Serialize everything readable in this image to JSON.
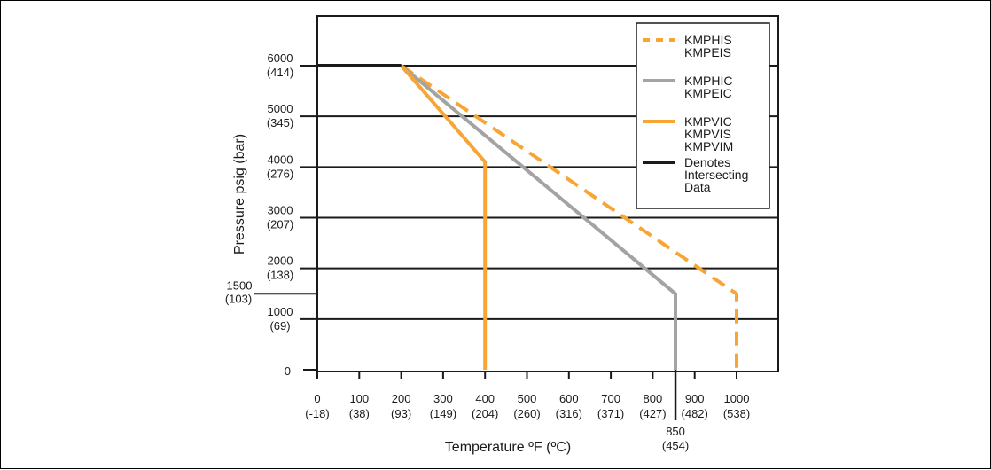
{
  "chart_data": {
    "type": "line",
    "xlabel": "Temperature ºF (ºC)",
    "ylabel": "Pressure psig (bar)",
    "xlim": [
      0,
      1000
    ],
    "ylim": [
      0,
      6000
    ],
    "x_ticks": [
      {
        "value": 0,
        "label": "0",
        "sub": "(-18)"
      },
      {
        "value": 100,
        "label": "100",
        "sub": "(38)"
      },
      {
        "value": 200,
        "label": "200",
        "sub": "(93)"
      },
      {
        "value": 300,
        "label": "300",
        "sub": "(149)"
      },
      {
        "value": 400,
        "label": "400",
        "sub": "(204)"
      },
      {
        "value": 500,
        "label": "500",
        "sub": "(260)"
      },
      {
        "value": 600,
        "label": "600",
        "sub": "(316)"
      },
      {
        "value": 700,
        "label": "700",
        "sub": "(371)"
      },
      {
        "value": 800,
        "label": "800",
        "sub": "(427)"
      },
      {
        "value": 900,
        "label": "900",
        "sub": "(482)"
      },
      {
        "value": 1000,
        "label": "1000",
        "sub": "(538)"
      }
    ],
    "x_extra_tick": {
      "value": 850,
      "label": "850",
      "sub": "(454)"
    },
    "y_ticks": [
      {
        "value": 0,
        "label": "0",
        "sub": ""
      },
      {
        "value": 1000,
        "label": "1000",
        "sub": "(69)"
      },
      {
        "value": 1500,
        "label": "1500",
        "sub": "(103)"
      },
      {
        "value": 2000,
        "label": "2000",
        "sub": "(138)"
      },
      {
        "value": 3000,
        "label": "3000",
        "sub": "(207)"
      },
      {
        "value": 4000,
        "label": "4000",
        "sub": "(276)"
      },
      {
        "value": 5000,
        "label": "5000",
        "sub": "(345)"
      },
      {
        "value": 6000,
        "label": "6000",
        "sub": "(414)"
      }
    ],
    "gridlines_y": [
      1000,
      2000,
      3000,
      4000,
      5000,
      6000
    ],
    "legend_position": "top-right",
    "series": [
      {
        "key": "his",
        "legend": [
          "KMPHIS",
          "KMPEIS"
        ],
        "style": "dashed",
        "color": "#f7a535",
        "points": [
          [
            200,
            6000
          ],
          [
            1000,
            1500
          ],
          [
            1000,
            0
          ]
        ]
      },
      {
        "key": "hic",
        "legend": [
          "KMPHIC",
          "KMPEIC"
        ],
        "style": "solid",
        "color": "#a3a3a3",
        "points": [
          [
            200,
            6000
          ],
          [
            850,
            1500
          ],
          [
            850,
            0
          ]
        ]
      },
      {
        "key": "vic",
        "legend": [
          "KMPVIC",
          "KMPVIS",
          "KMPVIM"
        ],
        "style": "solid",
        "color": "#f7a535",
        "points": [
          [
            200,
            6000
          ],
          [
            400,
            4100
          ],
          [
            400,
            0
          ]
        ]
      },
      {
        "key": "intersect",
        "legend": [
          "Denotes",
          "Intersecting",
          "Data"
        ],
        "style": "solid",
        "color": "#1a1a1a",
        "points": [
          [
            0,
            6000
          ],
          [
            200,
            6000
          ]
        ]
      }
    ]
  }
}
